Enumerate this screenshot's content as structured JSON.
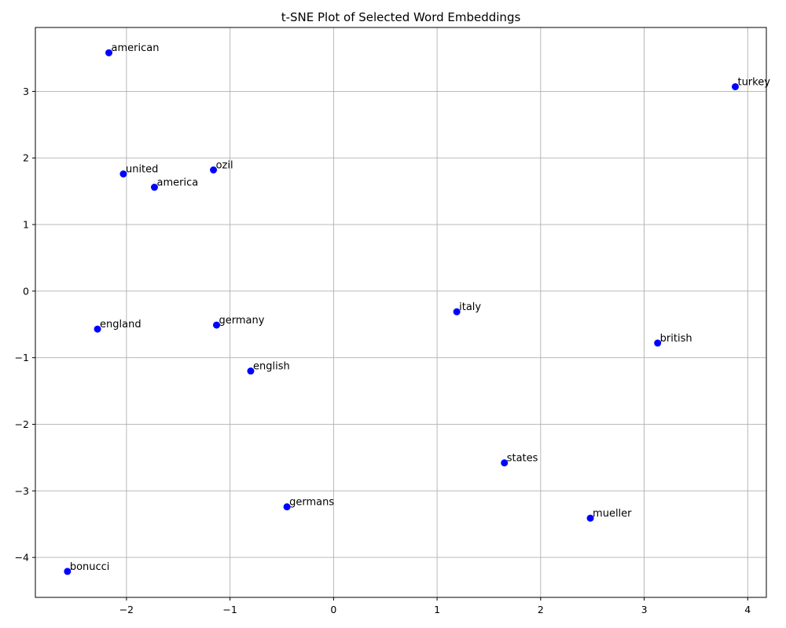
{
  "chart_data": {
    "type": "scatter",
    "title": "t-SNE Plot of Selected Word Embeddings",
    "xlabel": "",
    "ylabel": "",
    "xlim": [
      -2.88,
      4.18
    ],
    "ylim": [
      -4.6,
      3.96
    ],
    "xticks": [
      -2,
      -1,
      0,
      1,
      2,
      3,
      4
    ],
    "yticks": [
      -4,
      -3,
      -2,
      -1,
      0,
      1,
      2,
      3
    ],
    "xtick_labels": [
      "−2",
      "−1",
      "0",
      "1",
      "2",
      "3",
      "4"
    ],
    "ytick_labels": [
      "−4",
      "−3",
      "−2",
      "−1",
      "0",
      "1",
      "2",
      "3"
    ],
    "grid": true,
    "marker_color": "#0000ff",
    "points": [
      {
        "label": "american",
        "x": -2.17,
        "y": 3.58
      },
      {
        "label": "turkey",
        "x": 3.88,
        "y": 3.07
      },
      {
        "label": "united",
        "x": -2.03,
        "y": 1.76
      },
      {
        "label": "ozil",
        "x": -1.16,
        "y": 1.82
      },
      {
        "label": "america",
        "x": -1.73,
        "y": 1.56
      },
      {
        "label": "italy",
        "x": 1.19,
        "y": -0.31
      },
      {
        "label": "england",
        "x": -2.28,
        "y": -0.57
      },
      {
        "label": "germany",
        "x": -1.13,
        "y": -0.51
      },
      {
        "label": "british",
        "x": 3.13,
        "y": -0.78
      },
      {
        "label": "english",
        "x": -0.8,
        "y": -1.2
      },
      {
        "label": "states",
        "x": 1.65,
        "y": -2.58
      },
      {
        "label": "germans",
        "x": -0.45,
        "y": -3.24
      },
      {
        "label": "mueller",
        "x": 2.48,
        "y": -3.41
      },
      {
        "label": "bonucci",
        "x": -2.57,
        "y": -4.21
      }
    ]
  }
}
